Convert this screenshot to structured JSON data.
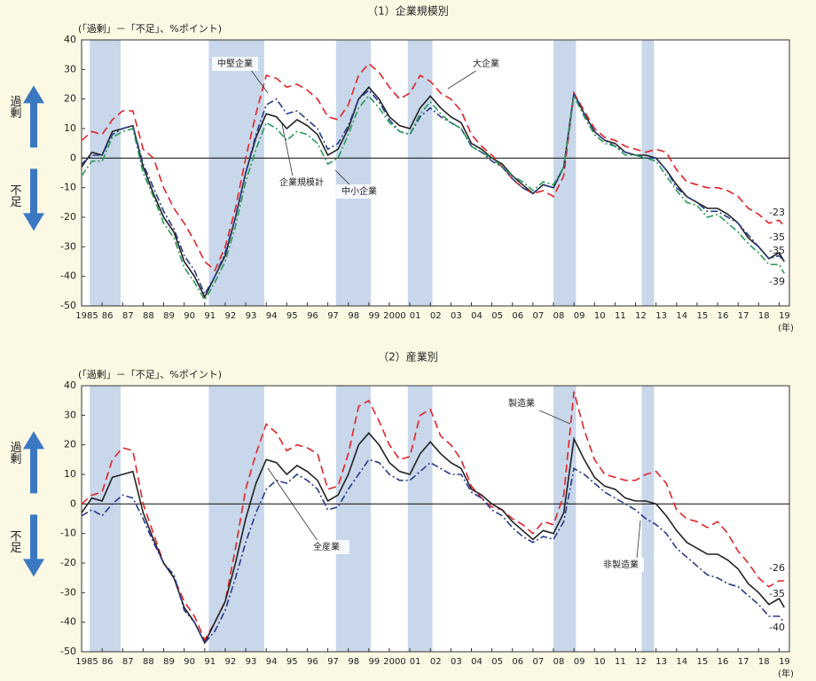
{
  "chart_data": [
    {
      "type": "line",
      "title": "（1）企業規模別",
      "y_label": "(「過剰」－「不足」、%ポイント)",
      "x_unit": "(年)",
      "side_labels": [
        "過剰",
        "不足"
      ],
      "xlim": [
        1985,
        2019.5
      ],
      "ylim": [
        -50,
        40
      ],
      "yticks": [
        -50,
        -40,
        -30,
        -20,
        -10,
        0,
        10,
        20,
        30,
        40
      ],
      "zero_line": true,
      "xticks": [
        1985,
        {
          "value": 1986,
          "label": "86"
        },
        {
          "value": 1987,
          "label": "87"
        },
        {
          "value": 1988,
          "label": "88"
        },
        {
          "value": 1989,
          "label": "89"
        },
        {
          "value": 1990,
          "label": "90"
        },
        {
          "value": 1991,
          "label": "91"
        },
        {
          "value": 1992,
          "label": "92"
        },
        {
          "value": 1993,
          "label": "93"
        },
        {
          "value": 1994,
          "label": "94"
        },
        {
          "value": 1995,
          "label": "95"
        },
        {
          "value": 1996,
          "label": "96"
        },
        {
          "value": 1997,
          "label": "97"
        },
        {
          "value": 1998,
          "label": "98"
        },
        {
          "value": 1999,
          "label": "99"
        },
        2000,
        {
          "value": 2001,
          "label": "01"
        },
        {
          "value": 2002,
          "label": "02"
        },
        {
          "value": 2003,
          "label": "03"
        },
        {
          "value": 2004,
          "label": "04"
        },
        {
          "value": 2005,
          "label": "05"
        },
        {
          "value": 2006,
          "label": "06"
        },
        {
          "value": 2007,
          "label": "07"
        },
        {
          "value": 2008,
          "label": "08"
        },
        {
          "value": 2009,
          "label": "09"
        },
        {
          "value": 2010,
          "label": "10"
        },
        {
          "value": 2011,
          "label": "11"
        },
        {
          "value": 2012,
          "label": "12"
        },
        {
          "value": 2013,
          "label": "13"
        },
        {
          "value": 2014,
          "label": "14"
        },
        {
          "value": 2015,
          "label": "15"
        },
        {
          "value": 2016,
          "label": "16"
        },
        {
          "value": 2017,
          "label": "17"
        },
        {
          "value": 2018,
          "label": "18"
        },
        {
          "value": 2019,
          "label": "19"
        }
      ],
      "shaded_periods": [
        [
          1985.4,
          1986.9
        ],
        [
          1991.2,
          1993.9
        ],
        [
          1997.4,
          1999.1
        ],
        [
          2000.9,
          2002.1
        ],
        [
          2008.0,
          2009.1
        ],
        [
          2012.3,
          2012.9
        ]
      ],
      "x": [
        1985,
        1985.5,
        1986,
        1986.5,
        1987,
        1987.5,
        1988,
        1988.5,
        1989,
        1989.5,
        1990,
        1990.5,
        1991,
        1991.5,
        1992,
        1992.5,
        1993,
        1993.5,
        1994,
        1994.5,
        1995,
        1995.5,
        1996,
        1996.5,
        1997,
        1997.5,
        1998,
        1998.5,
        1999,
        1999.5,
        2000,
        2000.5,
        2001,
        2001.5,
        2002,
        2002.5,
        2003,
        2003.5,
        2004,
        2004.5,
        2005,
        2005.5,
        2006,
        2006.5,
        2007,
        2007.5,
        2008,
        2008.5,
        2009,
        2009.5,
        2010,
        2010.5,
        2011,
        2011.5,
        2012,
        2012.5,
        2013,
        2013.5,
        2014,
        2014.5,
        2015,
        2015.5,
        2016,
        2016.5,
        2017,
        2017.5,
        2018,
        2018.5,
        2019,
        2019.25
      ],
      "series": [
        {
          "name": "企業規模計",
          "color": "#222222",
          "dash": "none",
          "values": [
            -3,
            2,
            1,
            9,
            10,
            11,
            -3,
            -12,
            -20,
            -25,
            -35,
            -40,
            -47,
            -40,
            -33,
            -20,
            -5,
            7,
            15,
            14,
            10,
            13,
            11,
            8,
            1,
            3,
            10,
            20,
            24,
            20,
            14,
            11,
            10,
            17,
            21,
            17,
            14,
            12,
            5,
            3,
            0,
            -2,
            -6,
            -9,
            -12,
            -9,
            -10,
            -3,
            22,
            15,
            9,
            6,
            5,
            2,
            1,
            1,
            0,
            -4,
            -9,
            -13,
            -15,
            -17,
            -17,
            -19,
            -22,
            -27,
            -30,
            -34,
            -32,
            -35
          ]
        },
        {
          "name": "大企業",
          "color": "#e0242a",
          "dash": "9,5",
          "values": [
            6,
            9,
            8,
            13,
            16,
            16,
            3,
            0,
            -10,
            -17,
            -22,
            -28,
            -35,
            -38,
            -30,
            -17,
            0,
            15,
            28,
            27,
            24,
            25,
            23,
            20,
            14,
            13,
            18,
            28,
            32,
            29,
            24,
            20,
            22,
            28,
            26,
            22,
            20,
            16,
            8,
            4,
            1,
            -3,
            -7,
            -10,
            -12,
            -11,
            -13,
            -6,
            22,
            16,
            10,
            7,
            6,
            4,
            3,
            2,
            3,
            2,
            -4,
            -8,
            -9,
            -10,
            -10,
            -11,
            -13,
            -17,
            -19,
            -22,
            -21,
            -23
          ]
        },
        {
          "name": "中堅企業",
          "color": "#2a3a8c",
          "dash": "8,3,2,3",
          "values": [
            -2,
            1,
            1,
            8,
            10,
            11,
            -2,
            -10,
            -18,
            -24,
            -33,
            -38,
            -46,
            -40,
            -32,
            -20,
            -5,
            8,
            18,
            20,
            15,
            16,
            13,
            10,
            3,
            5,
            11,
            20,
            23,
            19,
            13,
            9,
            8,
            14,
            17,
            14,
            12,
            10,
            4,
            2,
            -1,
            -3,
            -7,
            -10,
            -12,
            -9,
            -10,
            -3,
            22,
            15,
            9,
            6,
            4,
            2,
            1,
            0,
            0,
            -4,
            -10,
            -13,
            -15,
            -18,
            -18,
            -20,
            -22,
            -26,
            -30,
            -34,
            -33,
            -35
          ]
        },
        {
          "name": "中小企業",
          "color": "#2a9a5a",
          "dash": "8,3,2,3",
          "values": [
            -6,
            -1,
            -1,
            7,
            9,
            10,
            -5,
            -13,
            -22,
            -27,
            -37,
            -42,
            -48,
            -42,
            -35,
            -23,
            -8,
            3,
            12,
            10,
            6,
            9,
            8,
            5,
            -2,
            0,
            8,
            17,
            21,
            17,
            12,
            9,
            8,
            15,
            19,
            15,
            12,
            10,
            4,
            2,
            0,
            -3,
            -6,
            -8,
            -11,
            -8,
            -9,
            -3,
            21,
            14,
            8,
            5,
            4,
            1,
            1,
            0,
            -1,
            -6,
            -11,
            -15,
            -16,
            -20,
            -19,
            -22,
            -25,
            -29,
            -32,
            -36,
            -36,
            -39
          ]
        }
      ]
    },
    {
      "type": "line",
      "title": "（2）産業別",
      "y_label": "(「過剰」－「不足」、%ポイント)",
      "x_unit": "(年)",
      "side_labels": [
        "過剰",
        "不足"
      ],
      "xlim": [
        1985,
        2019.5
      ],
      "ylim": [
        -50,
        40
      ],
      "yticks": [
        -50,
        -40,
        -30,
        -20,
        -10,
        0,
        10,
        20,
        30,
        40
      ],
      "zero_line": true,
      "xticks": [
        1985,
        {
          "value": 1986,
          "label": "86"
        },
        {
          "value": 1987,
          "label": "87"
        },
        {
          "value": 1988,
          "label": "88"
        },
        {
          "value": 1989,
          "label": "89"
        },
        {
          "value": 1990,
          "label": "90"
        },
        {
          "value": 1991,
          "label": "91"
        },
        {
          "value": 1992,
          "label": "92"
        },
        {
          "value": 1993,
          "label": "93"
        },
        {
          "value": 1994,
          "label": "94"
        },
        {
          "value": 1995,
          "label": "95"
        },
        {
          "value": 1996,
          "label": "96"
        },
        {
          "value": 1997,
          "label": "97"
        },
        {
          "value": 1998,
          "label": "98"
        },
        {
          "value": 1999,
          "label": "99"
        },
        2000,
        {
          "value": 2001,
          "label": "01"
        },
        {
          "value": 2002,
          "label": "02"
        },
        {
          "value": 2003,
          "label": "03"
        },
        {
          "value": 2004,
          "label": "04"
        },
        {
          "value": 2005,
          "label": "05"
        },
        {
          "value": 2006,
          "label": "06"
        },
        {
          "value": 2007,
          "label": "07"
        },
        {
          "value": 2008,
          "label": "08"
        },
        {
          "value": 2009,
          "label": "09"
        },
        {
          "value": 2010,
          "label": "10"
        },
        {
          "value": 2011,
          "label": "11"
        },
        {
          "value": 2012,
          "label": "12"
        },
        {
          "value": 2013,
          "label": "13"
        },
        {
          "value": 2014,
          "label": "14"
        },
        {
          "value": 2015,
          "label": "15"
        },
        {
          "value": 2016,
          "label": "16"
        },
        {
          "value": 2017,
          "label": "17"
        },
        {
          "value": 2018,
          "label": "18"
        },
        {
          "value": 2019,
          "label": "19"
        }
      ],
      "shaded_periods": [
        [
          1985.4,
          1986.9
        ],
        [
          1991.2,
          1993.9
        ],
        [
          1997.4,
          1999.1
        ],
        [
          2000.9,
          2002.1
        ],
        [
          2008.0,
          2009.1
        ],
        [
          2012.3,
          2012.9
        ]
      ],
      "x": [
        1985,
        1985.5,
        1986,
        1986.5,
        1987,
        1987.5,
        1988,
        1988.5,
        1989,
        1989.5,
        1990,
        1990.5,
        1991,
        1991.5,
        1992,
        1992.5,
        1993,
        1993.5,
        1994,
        1994.5,
        1995,
        1995.5,
        1996,
        1996.5,
        1997,
        1997.5,
        1998,
        1998.5,
        1999,
        1999.5,
        2000,
        2000.5,
        2001,
        2001.5,
        2002,
        2002.5,
        2003,
        2003.5,
        2004,
        2004.5,
        2005,
        2005.5,
        2006,
        2006.5,
        2007,
        2007.5,
        2008,
        2008.5,
        2009,
        2009.5,
        2010,
        2010.5,
        2011,
        2011.5,
        2012,
        2012.5,
        2013,
        2013.5,
        2014,
        2014.5,
        2015,
        2015.5,
        2016,
        2016.5,
        2017,
        2017.5,
        2018,
        2018.5,
        2019,
        2019.25
      ],
      "series": [
        {
          "name": "製造業",
          "color": "#e0242a",
          "dash": "9,5",
          "values": [
            0,
            3,
            4,
            15,
            19,
            18,
            0,
            -10,
            -20,
            -25,
            -33,
            -38,
            -46,
            -40,
            -33,
            -15,
            5,
            17,
            27,
            24,
            18,
            20,
            19,
            17,
            5,
            6,
            17,
            33,
            35,
            28,
            20,
            15,
            16,
            30,
            32,
            23,
            20,
            15,
            6,
            2,
            -1,
            -2,
            -5,
            -7,
            -10,
            -6,
            -7,
            3,
            38,
            25,
            15,
            10,
            9,
            8,
            8,
            10,
            11,
            7,
            -2,
            -5,
            -6,
            -8,
            -6,
            -10,
            -16,
            -20,
            -25,
            -28,
            -26,
            -26
          ]
        },
        {
          "name": "全産業",
          "color": "#222222",
          "dash": "none",
          "values": [
            -3,
            2,
            1,
            9,
            10,
            11,
            -3,
            -12,
            -20,
            -25,
            -35,
            -40,
            -47,
            -40,
            -33,
            -20,
            -5,
            7,
            15,
            14,
            10,
            13,
            11,
            8,
            1,
            3,
            10,
            20,
            24,
            20,
            14,
            11,
            10,
            17,
            21,
            17,
            14,
            12,
            5,
            3,
            0,
            -2,
            -6,
            -9,
            -12,
            -9,
            -10,
            -3,
            22,
            15,
            9,
            6,
            5,
            2,
            1,
            1,
            0,
            -4,
            -9,
            -13,
            -15,
            -17,
            -17,
            -19,
            -22,
            -27,
            -30,
            -34,
            -32,
            -35
          ]
        },
        {
          "name": "非製造業",
          "color": "#2a3a8c",
          "dash": "8,3,2,3",
          "values": [
            -4,
            -2,
            -4,
            0,
            3,
            2,
            -5,
            -13,
            -20,
            -24,
            -36,
            -40,
            -47,
            -43,
            -36,
            -25,
            -13,
            -3,
            5,
            8,
            7,
            10,
            8,
            5,
            -2,
            -1,
            5,
            10,
            15,
            14,
            10,
            8,
            8,
            11,
            14,
            12,
            10,
            10,
            4,
            2,
            -2,
            -4,
            -8,
            -11,
            -13,
            -11,
            -12,
            -6,
            12,
            10,
            7,
            4,
            2,
            0,
            -2,
            -5,
            -7,
            -10,
            -15,
            -18,
            -21,
            -24,
            -25,
            -27,
            -28,
            -31,
            -34,
            -38,
            -38,
            -40
          ]
        }
      ]
    }
  ]
}
